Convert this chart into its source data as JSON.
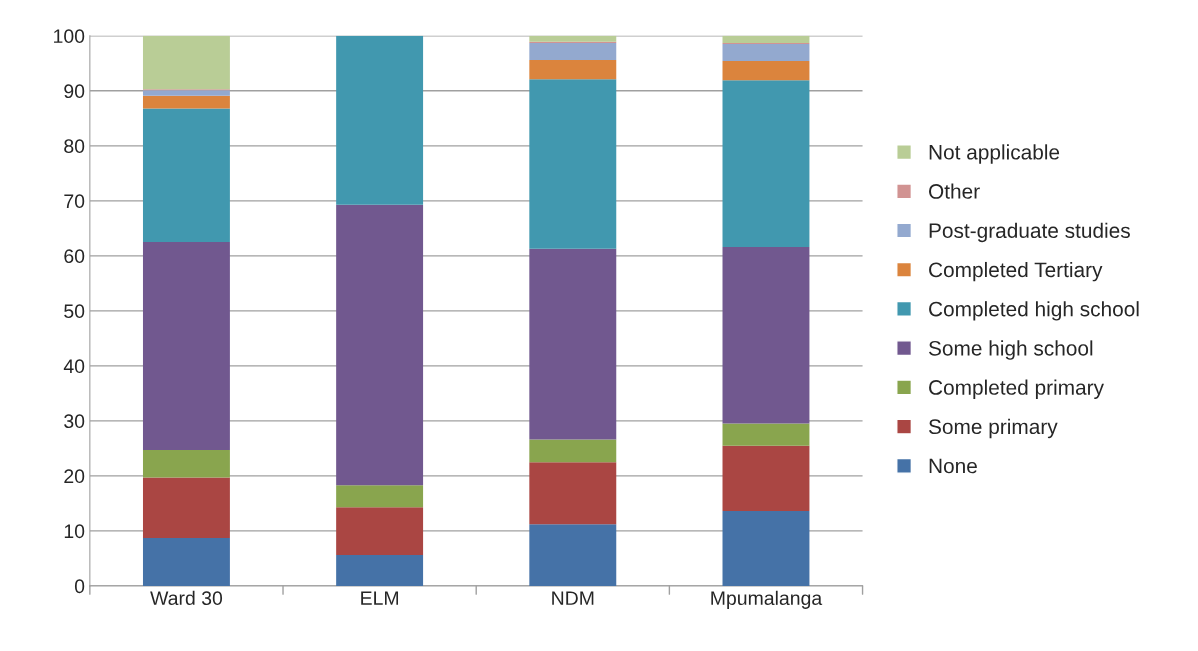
{
  "chart_data": {
    "type": "bar",
    "stacked": true,
    "categories": [
      "Ward 30",
      "ELM",
      "NDM",
      "Mpumalanga"
    ],
    "series": [
      {
        "name": "None",
        "color": "#4572a7",
        "values": [
          8.7,
          5.6,
          11.2,
          13.6
        ]
      },
      {
        "name": "Some primary",
        "color": "#aa4643",
        "values": [
          11.0,
          8.7,
          11.3,
          11.9
        ]
      },
      {
        "name": "Completed primary",
        "color": "#89a54e",
        "values": [
          5.0,
          4.0,
          4.1,
          4.0
        ]
      },
      {
        "name": "Some high school",
        "color": "#71588f",
        "values": [
          37.8,
          51.0,
          34.7,
          32.1
        ]
      },
      {
        "name": "Completed high school",
        "color": "#4198af",
        "values": [
          24.3,
          30.7,
          30.8,
          30.3
        ]
      },
      {
        "name": "Completed Tertiary",
        "color": "#db843d",
        "values": [
          2.3,
          null,
          3.5,
          3.5
        ]
      },
      {
        "name": "Post-graduate studies",
        "color": "#93a9cf",
        "values": [
          1.0,
          null,
          3.1,
          3.1
        ]
      },
      {
        "name": "Other",
        "color": "#d19392",
        "values": [
          0.2,
          null,
          0.2,
          0.2
        ]
      },
      {
        "name": "Not applicable",
        "color": "#b9cd96",
        "values": [
          9.7,
          null,
          1.1,
          1.3
        ]
      }
    ],
    "ylim": [
      0,
      100
    ],
    "yticks": [
      0,
      10,
      20,
      30,
      40,
      50,
      60,
      70,
      80,
      90,
      100
    ],
    "grid": "y",
    "legend": "right"
  }
}
